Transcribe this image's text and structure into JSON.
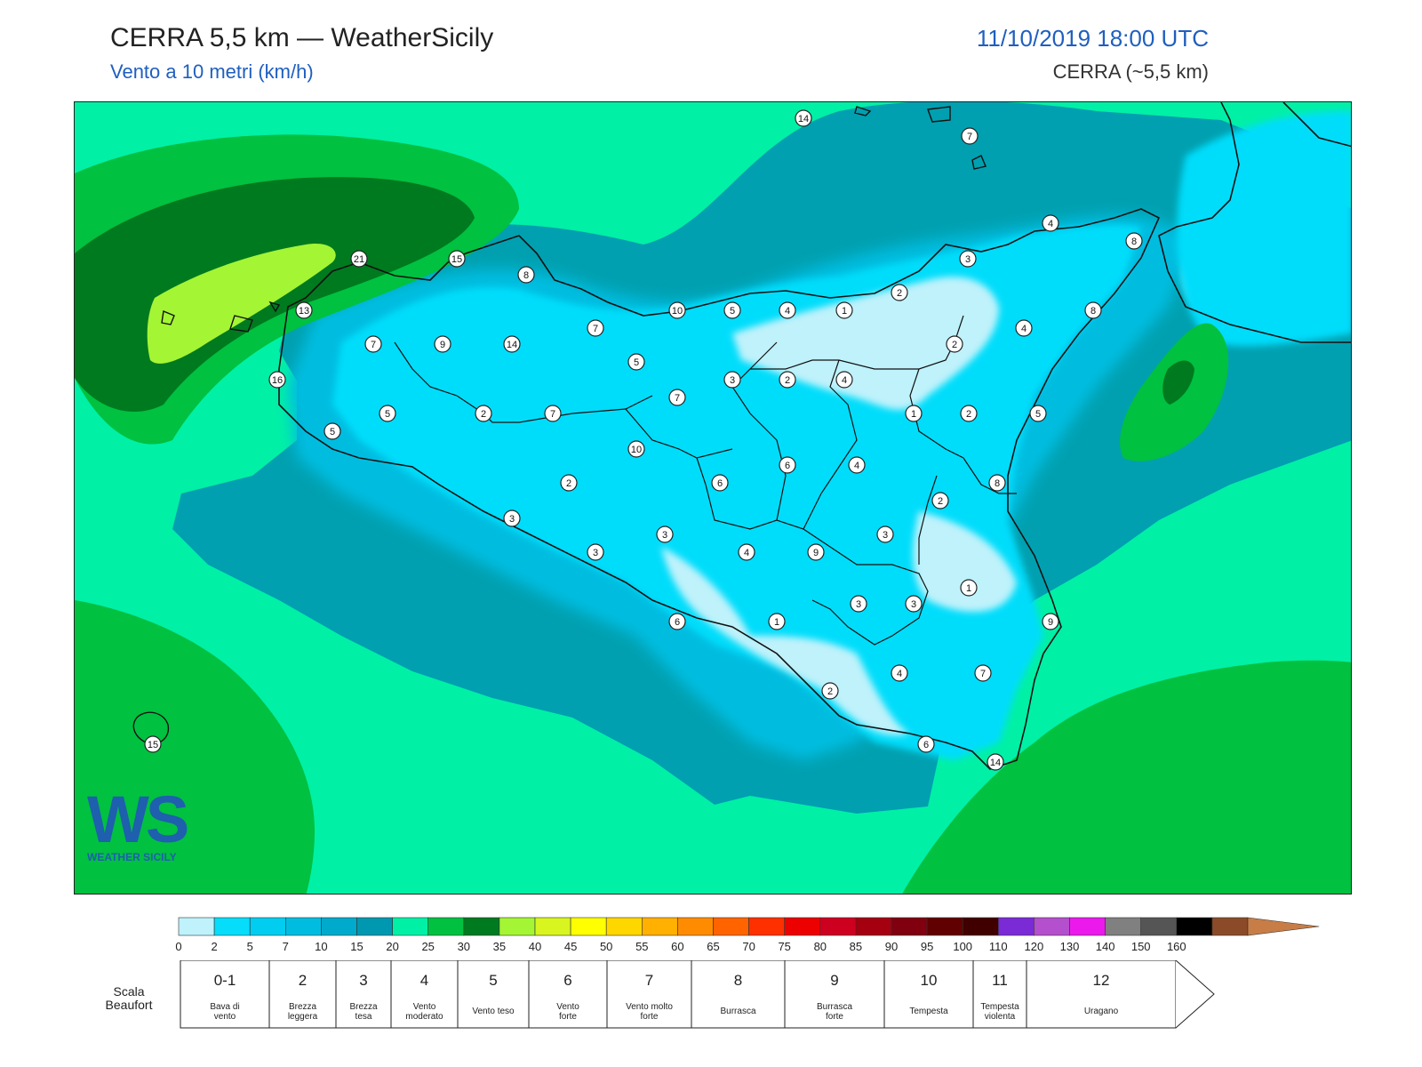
{
  "header": {
    "title": "CERRA 5,5 km — WeatherSicily",
    "subtitle": "Vento a 10 metri (km/h)",
    "datetime": "11/10/2019 18:00 UTC",
    "model": "CERRA (~5,5 km)"
  },
  "logo": {
    "text": "WS",
    "caption": "WEATHER SICILY"
  },
  "colors": {
    "sea_main": "#00f0a6",
    "sea_mid": "#00a0b0",
    "land_light": "#bff2fb",
    "land_mid": "#05ddfb",
    "high_wind_green": "#00c140",
    "high_wind_dark": "#007a1f",
    "high_wind_yellow": "#a4f534"
  },
  "station_values": [
    {
      "id": "p1",
      "value": "14"
    },
    {
      "id": "p2",
      "value": "7"
    },
    {
      "id": "p3",
      "value": "4"
    },
    {
      "id": "p4",
      "value": "8"
    },
    {
      "id": "p5",
      "value": "21"
    },
    {
      "id": "p6",
      "value": "15"
    },
    {
      "id": "p7",
      "value": "8"
    },
    {
      "id": "p8",
      "value": "13"
    },
    {
      "id": "p9",
      "value": "3"
    },
    {
      "id": "p10",
      "value": "2"
    },
    {
      "id": "p11",
      "value": "10"
    },
    {
      "id": "p12",
      "value": "5"
    },
    {
      "id": "p13",
      "value": "4"
    },
    {
      "id": "p14",
      "value": "1"
    },
    {
      "id": "p15",
      "value": "8"
    },
    {
      "id": "p16",
      "value": "7"
    },
    {
      "id": "p17",
      "value": "9"
    },
    {
      "id": "p18",
      "value": "14"
    },
    {
      "id": "p19",
      "value": "7"
    },
    {
      "id": "p20",
      "value": "2"
    },
    {
      "id": "p21",
      "value": "4"
    },
    {
      "id": "p22",
      "value": "16"
    },
    {
      "id": "p23",
      "value": "5"
    },
    {
      "id": "p24",
      "value": "3"
    },
    {
      "id": "p25",
      "value": "2"
    },
    {
      "id": "p26",
      "value": "4"
    },
    {
      "id": "p27",
      "value": "7"
    },
    {
      "id": "p28",
      "value": "5"
    },
    {
      "id": "p29",
      "value": "2"
    },
    {
      "id": "p30",
      "value": "7"
    },
    {
      "id": "p31",
      "value": "1"
    },
    {
      "id": "p32",
      "value": "2"
    },
    {
      "id": "p33",
      "value": "5"
    },
    {
      "id": "p34",
      "value": "10"
    },
    {
      "id": "p35",
      "value": "5"
    },
    {
      "id": "p36",
      "value": "6"
    },
    {
      "id": "p37",
      "value": "4"
    },
    {
      "id": "p38",
      "value": "2"
    },
    {
      "id": "p39",
      "value": "6"
    },
    {
      "id": "p40",
      "value": "8"
    },
    {
      "id": "p41",
      "value": "2"
    },
    {
      "id": "p42",
      "value": "3"
    },
    {
      "id": "p43",
      "value": "3"
    },
    {
      "id": "p44",
      "value": "3"
    },
    {
      "id": "p45",
      "value": "4"
    },
    {
      "id": "p46",
      "value": "9"
    },
    {
      "id": "p47",
      "value": "3"
    },
    {
      "id": "p48",
      "value": "3"
    },
    {
      "id": "p49",
      "value": "1"
    },
    {
      "id": "p50",
      "value": "3"
    },
    {
      "id": "p51",
      "value": "6"
    },
    {
      "id": "p52",
      "value": "1"
    },
    {
      "id": "p53",
      "value": "9"
    },
    {
      "id": "p54",
      "value": "4"
    },
    {
      "id": "p55",
      "value": "7"
    },
    {
      "id": "p56",
      "value": "2"
    },
    {
      "id": "p57",
      "value": "6"
    },
    {
      "id": "p58",
      "value": "14"
    },
    {
      "id": "p59",
      "value": "15"
    }
  ],
  "legend": {
    "ticks": [
      "0",
      "2",
      "5",
      "7",
      "10",
      "15",
      "20",
      "25",
      "30",
      "35",
      "40",
      "45",
      "50",
      "55",
      "60",
      "65",
      "70",
      "75",
      "80",
      "85",
      "90",
      "95",
      "100",
      "110",
      "120",
      "130",
      "140",
      "150",
      "160"
    ],
    "colors": [
      "#bff2fb",
      "#05ddfb",
      "#00cdf0",
      "#00bde0",
      "#00aacc",
      "#0098b0",
      "#00f0a6",
      "#00c140",
      "#007a1f",
      "#a4f534",
      "#d8f51f",
      "#ffff00",
      "#ffd700",
      "#ffb000",
      "#ff8c00",
      "#ff6400",
      "#ff3000",
      "#ec0000",
      "#cd0020",
      "#a50010",
      "#800010",
      "#600000",
      "#400000",
      "#7a2bd6",
      "#b44fcd",
      "#ec19ec",
      "#808080",
      "#555555",
      "#000000",
      "#8b4b28",
      "#c87d46"
    ]
  },
  "beaufort": {
    "scale_label": "Scala Beaufort",
    "cells": [
      {
        "num": "0-1",
        "desc": "Bava di vento"
      },
      {
        "num": "2",
        "desc": "Brezza leggera"
      },
      {
        "num": "3",
        "desc": "Brezza tesa"
      },
      {
        "num": "4",
        "desc": "Vento moderato"
      },
      {
        "num": "5",
        "desc": "Vento teso"
      },
      {
        "num": "6",
        "desc": "Vento forte"
      },
      {
        "num": "7",
        "desc": "Vento molto forte"
      },
      {
        "num": "8",
        "desc": "Burrasca"
      },
      {
        "num": "9",
        "desc": "Burrasca forte"
      },
      {
        "num": "10",
        "desc": "Tempesta"
      },
      {
        "num": "11",
        "desc": "Tempesta violenta"
      },
      {
        "num": "12",
        "desc": "Uragano"
      }
    ]
  }
}
